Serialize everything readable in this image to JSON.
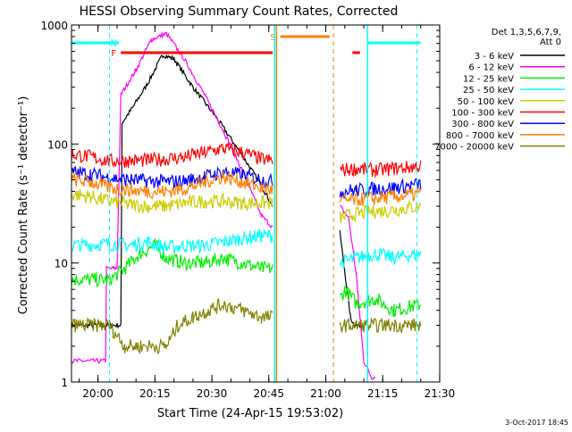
{
  "chart_data": {
    "type": "line",
    "title": "HESSI Observing Summary Count Rates, Corrected",
    "xlabel": "Start Time (24-Apr-15 19:53:02)",
    "ylabel": "Corrected Count Rate (s⁻¹ detector⁻¹)",
    "yscale": "log",
    "ylim": [
      1,
      1000
    ],
    "xlim_minutes": [
      0,
      97
    ],
    "xticks": [
      {
        "label": "20:00",
        "t": 6.97
      },
      {
        "label": "20:15",
        "t": 21.97
      },
      {
        "label": "20:30",
        "t": 36.97
      },
      {
        "label": "20:45",
        "t": 51.97
      },
      {
        "label": "21:00",
        "t": 66.97
      },
      {
        "label": "21:15",
        "t": 81.97
      },
      {
        "label": "21:30",
        "t": 96.97
      }
    ],
    "yticks": [
      {
        "label": "1",
        "v": 1
      },
      {
        "label": "10",
        "v": 10
      },
      {
        "label": "100",
        "v": 100
      },
      {
        "label": "1000",
        "v": 1000
      }
    ],
    "legend": {
      "placement": "right",
      "header": [
        "Det 1,3,5,6,7,9,",
        "Att 0"
      ]
    },
    "series": [
      {
        "name": "3 - 6 keV",
        "color": "#000000",
        "points": [
          [
            0,
            3
          ],
          [
            13,
            3
          ],
          [
            13.3,
            150
          ],
          [
            16,
            200
          ],
          [
            20,
            320
          ],
          [
            24,
            560
          ],
          [
            27,
            520
          ],
          [
            32,
            300
          ],
          [
            38,
            170
          ],
          [
            45,
            80
          ],
          [
            50,
            45
          ],
          [
            53,
            30
          ],
          [
            53.2,
            null
          ],
          [
            70.5,
            null
          ],
          [
            70.7,
            18
          ],
          [
            73.5,
            3.5
          ],
          [
            74.5,
            3
          ],
          [
            77,
            3
          ],
          [
            77.5,
            null
          ],
          [
            92,
            null
          ]
        ]
      },
      {
        "name": "6 - 12 keV",
        "color": "#ff00ff",
        "points": [
          [
            0,
            1.5
          ],
          [
            9,
            1.5
          ],
          [
            9.2,
            9
          ],
          [
            12,
            9
          ],
          [
            13,
            260
          ],
          [
            17,
            420
          ],
          [
            21,
            750
          ],
          [
            25,
            850
          ],
          [
            30,
            500
          ],
          [
            35,
            260
          ],
          [
            40,
            130
          ],
          [
            45,
            60
          ],
          [
            50,
            25
          ],
          [
            53,
            20
          ],
          [
            53.2,
            null
          ],
          [
            70.5,
            null
          ],
          [
            70.7,
            30
          ],
          [
            73,
            24
          ],
          [
            75,
            8
          ],
          [
            77,
            1.5
          ],
          [
            79,
            1.1
          ],
          [
            80,
            1.1
          ],
          [
            80.2,
            null
          ],
          [
            92,
            null
          ]
        ]
      },
      {
        "name": "12 - 25 keV",
        "color": "#00ee00",
        "points": [
          [
            0,
            7.3
          ],
          [
            10,
            7.2
          ],
          [
            14,
            9
          ],
          [
            18,
            12
          ],
          [
            22,
            14
          ],
          [
            25,
            11
          ],
          [
            30,
            10
          ],
          [
            35,
            10
          ],
          [
            40,
            11
          ],
          [
            45,
            10
          ],
          [
            50,
            9
          ],
          [
            53,
            9
          ],
          [
            53.2,
            null
          ],
          [
            70.5,
            null
          ],
          [
            70.7,
            5
          ],
          [
            72,
            6
          ],
          [
            75,
            4.6
          ],
          [
            80,
            5
          ],
          [
            85,
            4
          ],
          [
            92,
            4.5
          ]
        ]
      },
      {
        "name": "25 - 50 keV",
        "color": "#00ffff",
        "points": [
          [
            0,
            14
          ],
          [
            10,
            14.5
          ],
          [
            15,
            14
          ],
          [
            20,
            15
          ],
          [
            25,
            13.5
          ],
          [
            30,
            14
          ],
          [
            35,
            14
          ],
          [
            40,
            15
          ],
          [
            45,
            16
          ],
          [
            50,
            17
          ],
          [
            53,
            17
          ],
          [
            53.2,
            null
          ],
          [
            70.5,
            null
          ],
          [
            70.7,
            10
          ],
          [
            75,
            11
          ],
          [
            80,
            12
          ],
          [
            85,
            11
          ],
          [
            92,
            12
          ]
        ]
      },
      {
        "name": "50 - 100 keV",
        "color": "#cccc00",
        "points": [
          [
            0,
            38
          ],
          [
            5,
            36
          ],
          [
            10,
            33
          ],
          [
            15,
            31
          ],
          [
            20,
            30
          ],
          [
            25,
            30
          ],
          [
            30,
            32
          ],
          [
            35,
            33
          ],
          [
            40,
            33
          ],
          [
            45,
            32
          ],
          [
            50,
            32
          ],
          [
            53,
            32
          ],
          [
            53.2,
            null
          ],
          [
            70.5,
            null
          ],
          [
            70.7,
            24
          ],
          [
            75,
            26
          ],
          [
            80,
            27
          ],
          [
            85,
            28
          ],
          [
            92,
            30
          ]
        ]
      },
      {
        "name": "100 - 300 keV",
        "color": "#ff0000",
        "points": [
          [
            0,
            82
          ],
          [
            5,
            78
          ],
          [
            10,
            72
          ],
          [
            15,
            72
          ],
          [
            20,
            73
          ],
          [
            25,
            75
          ],
          [
            30,
            78
          ],
          [
            35,
            85
          ],
          [
            40,
            92
          ],
          [
            45,
            85
          ],
          [
            50,
            75
          ],
          [
            53,
            72
          ],
          [
            53.2,
            null
          ],
          [
            70.5,
            null
          ],
          [
            70.7,
            60
          ],
          [
            75,
            62
          ],
          [
            80,
            60
          ],
          [
            85,
            62
          ],
          [
            92,
            65
          ]
        ]
      },
      {
        "name": "300 - 800 keV",
        "color": "#0000ff",
        "points": [
          [
            0,
            58
          ],
          [
            5,
            56
          ],
          [
            10,
            52
          ],
          [
            15,
            50
          ],
          [
            20,
            49
          ],
          [
            25,
            48
          ],
          [
            30,
            49
          ],
          [
            35,
            53
          ],
          [
            40,
            58
          ],
          [
            45,
            55
          ],
          [
            50,
            50
          ],
          [
            53,
            48
          ],
          [
            53.2,
            null
          ],
          [
            70.5,
            null
          ],
          [
            70.7,
            40
          ],
          [
            75,
            41
          ],
          [
            80,
            42
          ],
          [
            85,
            43
          ],
          [
            92,
            46
          ]
        ]
      },
      {
        "name": "800 - 7000 keV",
        "color": "#ff8000",
        "points": [
          [
            0,
            50
          ],
          [
            5,
            48
          ],
          [
            10,
            43
          ],
          [
            15,
            41
          ],
          [
            20,
            40
          ],
          [
            25,
            40
          ],
          [
            30,
            42
          ],
          [
            35,
            48
          ],
          [
            40,
            53
          ],
          [
            45,
            48
          ],
          [
            50,
            43
          ],
          [
            53,
            41
          ],
          [
            53.2,
            null
          ],
          [
            70.5,
            null
          ],
          [
            70.7,
            33
          ],
          [
            75,
            34
          ],
          [
            80,
            35
          ],
          [
            85,
            36
          ],
          [
            92,
            38
          ]
        ]
      },
      {
        "name": "7000 - 20000 keV",
        "color": "#808000",
        "points": [
          [
            0,
            3
          ],
          [
            10,
            3
          ],
          [
            14,
            2
          ],
          [
            20,
            2
          ],
          [
            25,
            2
          ],
          [
            28,
            3
          ],
          [
            32,
            3.5
          ],
          [
            36,
            4
          ],
          [
            40,
            4.5
          ],
          [
            45,
            4
          ],
          [
            50,
            3.5
          ],
          [
            53,
            3.5
          ],
          [
            53.2,
            null
          ],
          [
            70.5,
            null
          ],
          [
            70.7,
            3
          ],
          [
            75,
            3
          ],
          [
            80,
            3
          ],
          [
            85,
            3
          ],
          [
            92,
            3
          ]
        ]
      }
    ],
    "annotations": [
      {
        "label": "N",
        "color": "#00ffff",
        "t": 13,
        "bars": [
          [
            0,
            12.5
          ],
          [
            78,
            92
          ]
        ],
        "dashed_at": [
          10,
          91
        ]
      },
      {
        "label": "F",
        "color": "#ff0000",
        "t": 13,
        "bars": [
          [
            13,
            53
          ],
          [
            74,
            76
          ]
        ]
      },
      {
        "label": "S",
        "color": "#ff8000",
        "t": 55,
        "bars": [
          [
            55,
            68
          ]
        ],
        "solid_at": [
          54
        ],
        "dashed_at": [
          69
        ]
      },
      {
        "label": "",
        "color": "#00ffff",
        "t": 54,
        "solid_at": [
          53.5,
          78
        ]
      }
    ]
  },
  "footer": {
    "timestamp": "3-Oct-2017 18:45"
  }
}
